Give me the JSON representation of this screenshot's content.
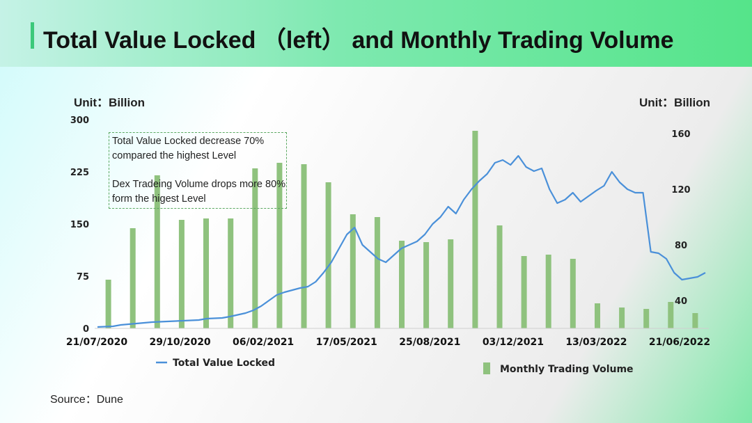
{
  "header": {
    "title": "Total Value Locked （left） and  Monthly Trading Volume"
  },
  "units": {
    "left": "Unit：Billion",
    "right": "Unit：Billion"
  },
  "annotation": {
    "line1": "Total Value Locked decrease 70% compared the highest Level",
    "line2": "Dex Tradeing Volume drops  more 80% form the higest Level"
  },
  "source": "Source：Dune",
  "colors": {
    "line": "#4a90d9",
    "bar": "#8fc27e",
    "accent": "#3bc97a"
  },
  "chart_data": {
    "type": "bar+line",
    "title": "Total Value Locked （left） and  Monthly Trading Volume",
    "x_tick_labels": [
      "21/07/2020",
      "29/10/2020",
      "06/02/2021",
      "17/05/2021",
      "25/08/2021",
      "03/12/2021",
      "13/03/2022",
      "21/06/2022"
    ],
    "left_axis": {
      "ticks": [
        "300",
        "225",
        "150",
        "75",
        "0"
      ],
      "range": [
        0,
        300
      ],
      "unit": "Billion"
    },
    "right_axis": {
      "ticks": [
        "160",
        "120",
        "80",
        "40"
      ],
      "range": [
        20,
        170
      ],
      "unit": "Billion"
    },
    "bars": {
      "name": "Monthly Trading Volume",
      "axis": "right",
      "values": [
        55,
        92,
        130,
        98,
        99,
        99,
        135,
        139,
        138,
        125,
        102,
        100,
        83,
        82,
        84,
        162,
        94,
        72,
        73,
        70,
        38,
        35,
        34,
        39,
        31
      ]
    },
    "line": {
      "name": "Total Value Locked",
      "axis": "left",
      "points": [
        [
          0,
          2
        ],
        [
          2,
          3
        ],
        [
          3,
          5
        ],
        [
          4,
          6
        ],
        [
          5,
          7
        ],
        [
          7,
          9
        ],
        [
          9,
          10
        ],
        [
          11,
          11
        ],
        [
          13,
          12
        ],
        [
          14,
          14
        ],
        [
          16,
          15
        ],
        [
          17,
          17
        ],
        [
          19,
          22
        ],
        [
          20,
          26
        ],
        [
          21,
          32
        ],
        [
          22,
          40
        ],
        [
          23,
          48
        ],
        [
          24,
          52
        ],
        [
          25,
          55
        ],
        [
          26,
          58
        ],
        [
          27,
          60
        ],
        [
          28,
          67
        ],
        [
          29,
          80
        ],
        [
          30,
          95
        ],
        [
          31,
          115
        ],
        [
          32,
          135
        ],
        [
          33,
          145
        ],
        [
          34,
          120
        ],
        [
          35,
          110
        ],
        [
          36,
          100
        ],
        [
          37,
          95
        ],
        [
          38,
          105
        ],
        [
          39,
          115
        ],
        [
          40,
          120
        ],
        [
          41,
          125
        ],
        [
          42,
          135
        ],
        [
          43,
          150
        ],
        [
          44,
          160
        ],
        [
          45,
          175
        ],
        [
          46,
          165
        ],
        [
          47,
          185
        ],
        [
          48,
          200
        ],
        [
          49,
          212
        ],
        [
          50,
          222
        ],
        [
          51,
          238
        ],
        [
          52,
          242
        ],
        [
          53,
          235
        ],
        [
          54,
          248
        ],
        [
          55,
          232
        ],
        [
          56,
          226
        ],
        [
          57,
          230
        ],
        [
          58,
          200
        ],
        [
          59,
          180
        ],
        [
          60,
          185
        ],
        [
          61,
          195
        ],
        [
          62,
          182
        ],
        [
          63,
          190
        ],
        [
          64,
          198
        ],
        [
          65,
          205
        ],
        [
          66,
          225
        ],
        [
          67,
          210
        ],
        [
          68,
          200
        ],
        [
          69,
          195
        ],
        [
          70,
          195
        ],
        [
          71,
          110
        ],
        [
          72,
          108
        ],
        [
          73,
          100
        ],
        [
          74,
          80
        ],
        [
          75,
          70
        ],
        [
          76,
          72
        ],
        [
          77,
          74
        ],
        [
          78,
          80
        ]
      ]
    }
  },
  "legend": {
    "line": "Total Value Locked",
    "bar": "Monthly Trading Volume"
  }
}
